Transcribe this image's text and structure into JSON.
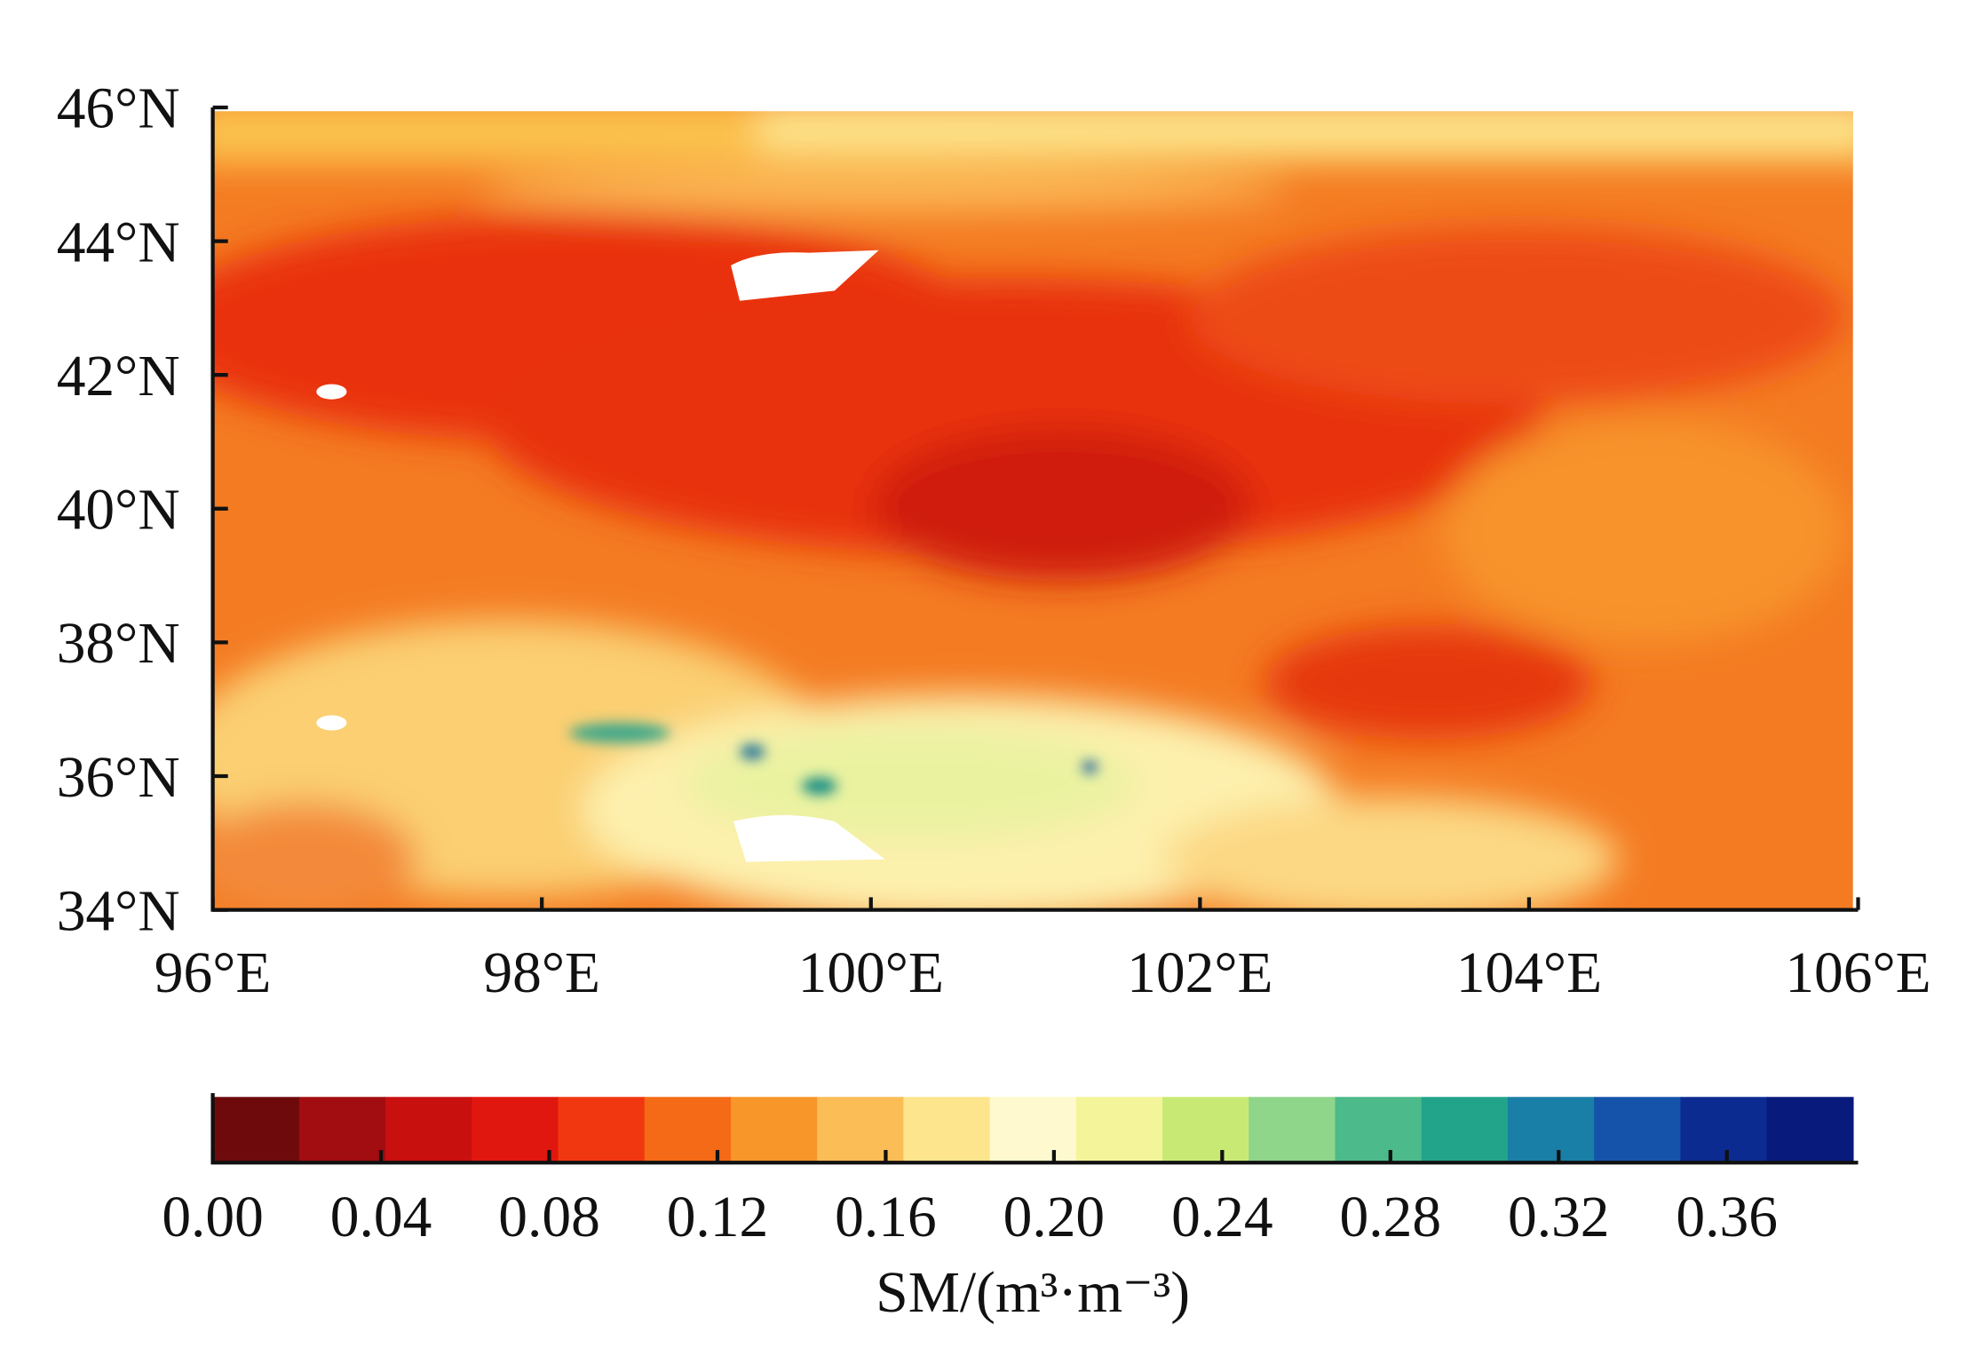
{
  "chart_data": {
    "type": "heatmap",
    "xlim": [
      96,
      106
    ],
    "xticks": [
      {
        "value": 96,
        "label": "96°E"
      },
      {
        "value": 98,
        "label": "98°E"
      },
      {
        "value": 100,
        "label": "100°E"
      },
      {
        "value": 102,
        "label": "102°E"
      },
      {
        "value": 104,
        "label": "104°E"
      },
      {
        "value": 106,
        "label": "106°E"
      }
    ],
    "ylim": [
      34,
      46
    ],
    "yticks": [
      {
        "value": 34,
        "label": "34°N"
      },
      {
        "value": 36,
        "label": "36°N"
      },
      {
        "value": 38,
        "label": "38°N"
      },
      {
        "value": 40,
        "label": "40°N"
      },
      {
        "value": 42,
        "label": "42°N"
      },
      {
        "value": 44,
        "label": "44°N"
      },
      {
        "value": 46,
        "label": "46°N"
      }
    ],
    "colorbar": {
      "label": "SM/(m³·m⁻³)",
      "range": [
        0,
        0.39
      ],
      "ticks": [
        {
          "value": 0,
          "label": "0.00"
        },
        {
          "value": 0.04,
          "label": "0.04"
        },
        {
          "value": 0.08,
          "label": "0.08"
        },
        {
          "value": 0.12,
          "label": "0.12"
        },
        {
          "value": 0.16,
          "label": "0.16"
        },
        {
          "value": 0.2,
          "label": "0.20"
        },
        {
          "value": 0.24,
          "label": "0.24"
        },
        {
          "value": 0.28,
          "label": "0.28"
        },
        {
          "value": 0.32,
          "label": "0.32"
        },
        {
          "value": 0.36,
          "label": "0.36"
        }
      ],
      "colors": [
        "#6e0a0c",
        "#a10d10",
        "#c8100f",
        "#e0170f",
        "#f0370f",
        "#f56a16",
        "#f8962a",
        "#fbbd55",
        "#fde58e",
        "#fff9cf",
        "#f4f59a",
        "#c8ea74",
        "#8fd58a",
        "#4cba8a",
        "#22a48a",
        "#1a7fa6",
        "#1553aa",
        "#0c2b91",
        "#081a7c"
      ]
    }
  }
}
